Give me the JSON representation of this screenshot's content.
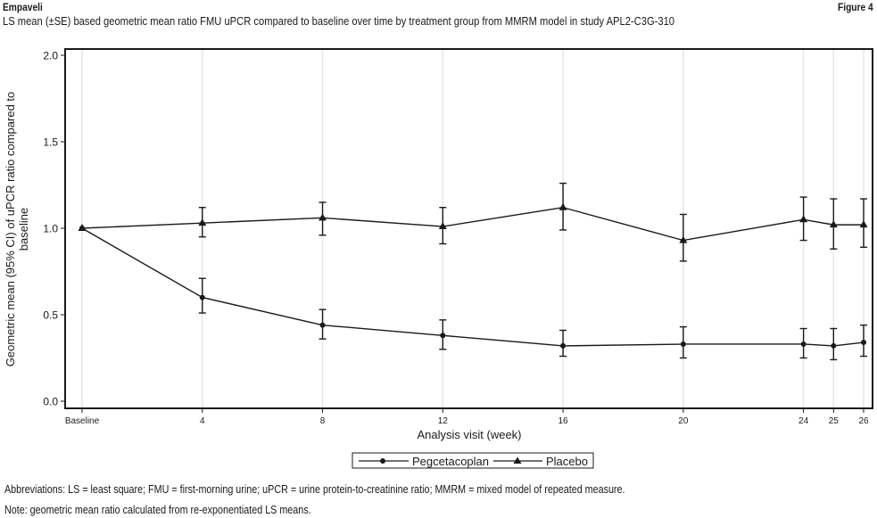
{
  "header": {
    "brand": "Empaveli",
    "figure_label": "Figure 4",
    "subtitle": "LS mean (±SE) based geometric mean ratio FMU uPCR compared to baseline over time by treatment group from MMRM model in study APL2-C3G-310"
  },
  "footnotes": {
    "abbreviations": "Abbreviations: LS = least square; FMU = first-morning urine; uPCR = urine protein-to-creatinine ratio; MMRM = mixed model of repeated measure.",
    "note": "Note: geometric mean ratio calculated from re-exponentiated LS means."
  },
  "chart_data": {
    "type": "line",
    "title": "LS mean (±SE) based geometric mean ratio FMU uPCR compared to baseline over time by treatment group from MMRM model in study APL2-C3G-310",
    "xlabel": "Analysis visit (week)",
    "ylabel_lines": [
      "Geometric mean (95% CI) of uPCR ratio compared to",
      "baseline"
    ],
    "x": [
      0,
      4,
      8,
      12,
      16,
      20,
      24,
      25,
      26
    ],
    "x_tick_labels": [
      "Baseline",
      "4",
      "8",
      "12",
      "16",
      "20",
      "24",
      "25",
      "26"
    ],
    "xlim": [
      0,
      26
    ],
    "ylim": [
      0,
      2.0
    ],
    "y_ticks": [
      0.0,
      0.5,
      1.0,
      1.5,
      2.0
    ],
    "y_tick_labels": [
      "0.0",
      "0.5",
      "1.0",
      "1.5",
      "2.0"
    ],
    "grid": "vertical lines at visits",
    "legend_placement": "bottom-center",
    "series": [
      {
        "name": "Pegcetacoplan",
        "marker": "circle",
        "values": [
          1.0,
          0.6,
          0.44,
          0.38,
          0.32,
          0.33,
          0.33,
          0.32,
          0.34
        ],
        "ci_lower": [
          null,
          0.51,
          0.36,
          0.3,
          0.26,
          0.25,
          0.25,
          0.24,
          0.26
        ],
        "ci_upper": [
          null,
          0.71,
          0.53,
          0.47,
          0.41,
          0.43,
          0.42,
          0.42,
          0.44
        ]
      },
      {
        "name": "Placebo",
        "marker": "triangle",
        "values": [
          1.0,
          1.03,
          1.06,
          1.01,
          1.12,
          0.93,
          1.05,
          1.02,
          1.02
        ],
        "ci_lower": [
          null,
          0.95,
          0.96,
          0.91,
          0.99,
          0.81,
          0.93,
          0.88,
          0.89
        ],
        "ci_upper": [
          null,
          1.12,
          1.15,
          1.12,
          1.26,
          1.08,
          1.18,
          1.17,
          1.17
        ]
      }
    ],
    "colors": {
      "line": "#1a1a1a",
      "grid": "#e6e6e6",
      "frame": "#1a1a1a"
    }
  }
}
